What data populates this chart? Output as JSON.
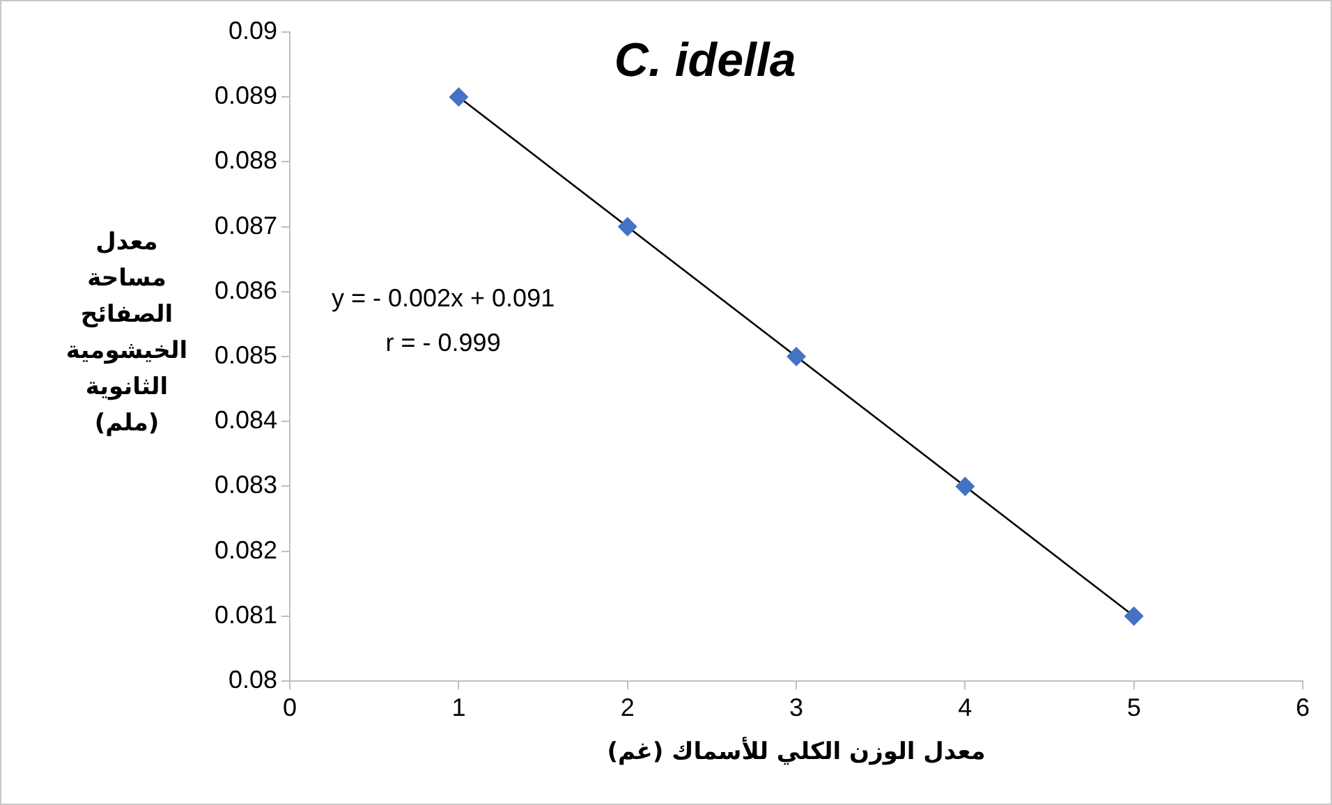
{
  "chart_data": {
    "type": "scatter",
    "title": "C. idella",
    "xlabel": "معدل الوزن الكلي للأسماك (غم)",
    "ylabel": "معدل مساحة الصفائح الخيشومية الثانوية (ملم)",
    "x": [
      1,
      2,
      3,
      4,
      5
    ],
    "series": [
      {
        "type": "scatter",
        "color": "#4472c4",
        "marker": "diamond",
        "values": [
          0.089,
          0.087,
          0.085,
          0.083,
          0.081
        ]
      },
      {
        "type": "line",
        "color": "#000000",
        "marker": "none",
        "x": [
          1,
          5
        ],
        "values": [
          0.089,
          0.081
        ]
      }
    ],
    "xlim": [
      0,
      6
    ],
    "xticks": [
      0,
      1,
      2,
      3,
      4,
      5,
      6
    ],
    "ylim": [
      0.08,
      0.09
    ],
    "yticks": [
      0.08,
      0.081,
      0.082,
      0.083,
      0.084,
      0.085,
      0.086,
      0.087,
      0.088,
      0.089,
      0.09
    ],
    "annotations": [
      "y = - 0.002x + 0.091",
      "r = - 0.999"
    ],
    "grid": false,
    "legend": false
  }
}
